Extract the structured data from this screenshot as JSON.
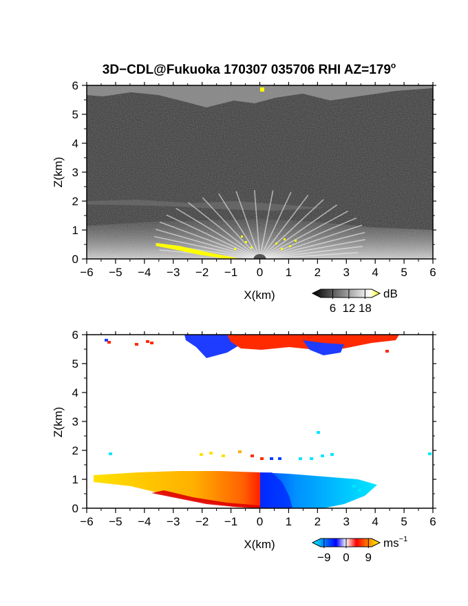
{
  "title": "3D−CDL@Fukuoka 170307 035706 RHI AZ=179",
  "title_sup": "o",
  "chart_data": [
    {
      "type": "heatmap",
      "panel": "reflectivity",
      "xlabel": "X(km)",
      "ylabel": "Z(km)",
      "xlim": [
        -6,
        6
      ],
      "ylim": [
        0,
        6
      ],
      "x_ticks": [
        "−6",
        "−5",
        "−4",
        "−3",
        "−2",
        "−1",
        "0",
        "1",
        "2",
        "3",
        "4",
        "5",
        "6"
      ],
      "y_ticks": [
        "0",
        "1",
        "2",
        "3",
        "4",
        "5",
        "6"
      ],
      "colorbar": {
        "unit": "dB",
        "ticks": [
          "6",
          "12",
          "18"
        ],
        "tick_values": [
          6,
          12,
          18
        ],
        "range": [
          0,
          22
        ],
        "colors": [
          "#000000",
          "#ffffff",
          "#ffff00"
        ]
      },
      "background_color": "#2a2a2a",
      "features": {
        "cloud_top_base_km": 5.4,
        "elevated_layer_km": 1.9,
        "boundary_layer_top_km": 0.9,
        "ground_clutter_x_km": [
          -3.6,
          -0.5
        ]
      }
    },
    {
      "type": "heatmap",
      "panel": "doppler_velocity",
      "xlabel": "X(km)",
      "ylabel": "Z(km)",
      "xlim": [
        -6,
        6
      ],
      "ylim": [
        0,
        6
      ],
      "x_ticks": [
        "−6",
        "−5",
        "−4",
        "−3",
        "−2",
        "−1",
        "0",
        "1",
        "2",
        "3",
        "4",
        "5",
        "6"
      ],
      "y_ticks": [
        "0",
        "1",
        "2",
        "3",
        "4",
        "5",
        "6"
      ],
      "colorbar": {
        "unit": "ms",
        "unit_sup": "−1",
        "ticks": [
          "−9",
          "0",
          "9"
        ],
        "tick_values": [
          -9,
          0,
          9
        ],
        "range": [
          -12,
          12
        ],
        "colors": [
          "#00ffff",
          "#0000ff",
          "#ff0000",
          "#ffff00"
        ]
      },
      "features": {
        "negative_region_x_km": [
          0,
          4.2
        ],
        "positive_region_x_km": [
          -5.8,
          0
        ],
        "boundary_layer_top_km": 1.1,
        "cloud_top_base_km": 5.6
      }
    }
  ]
}
